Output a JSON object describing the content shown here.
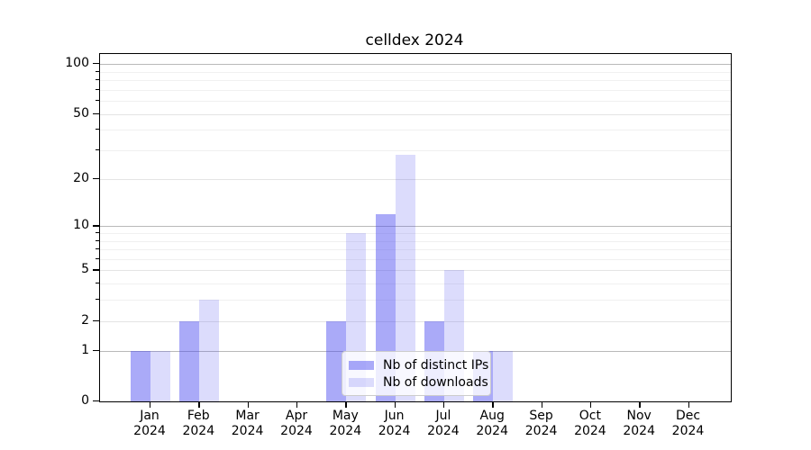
{
  "chart_data": {
    "type": "bar",
    "title": "celldex 2024",
    "year": "2024",
    "categories": [
      {
        "month": "Jan",
        "year": "2024"
      },
      {
        "month": "Feb",
        "year": "2024"
      },
      {
        "month": "Mar",
        "year": "2024"
      },
      {
        "month": "Apr",
        "year": "2024"
      },
      {
        "month": "May",
        "year": "2024"
      },
      {
        "month": "Jun",
        "year": "2024"
      },
      {
        "month": "Jul",
        "year": "2024"
      },
      {
        "month": "Aug",
        "year": "2024"
      },
      {
        "month": "Sep",
        "year": "2024"
      },
      {
        "month": "Oct",
        "year": "2024"
      },
      {
        "month": "Nov",
        "year": "2024"
      },
      {
        "month": "Dec",
        "year": "2024"
      }
    ],
    "series": [
      {
        "name": "Nb of distinct IPs",
        "color": "rgba(70,70,240,0.46)",
        "values": [
          1,
          2,
          0,
          0,
          2,
          12,
          2,
          1,
          0,
          0,
          0,
          0
        ]
      },
      {
        "name": "Nb of downloads",
        "color": "rgba(70,70,240,0.19)",
        "values": [
          1,
          3,
          0,
          0,
          9,
          28,
          5,
          1,
          0,
          0,
          0,
          0
        ]
      }
    ],
    "yscale": "log1p",
    "ylim": [
      0,
      113
    ],
    "yticks": [
      0,
      1,
      2,
      5,
      10,
      20,
      50,
      100
    ],
    "minor_yticks": [
      3,
      4,
      6,
      7,
      8,
      9,
      30,
      40,
      60,
      70,
      80,
      90
    ],
    "grid": "on",
    "legend_position": "lower center inside"
  }
}
